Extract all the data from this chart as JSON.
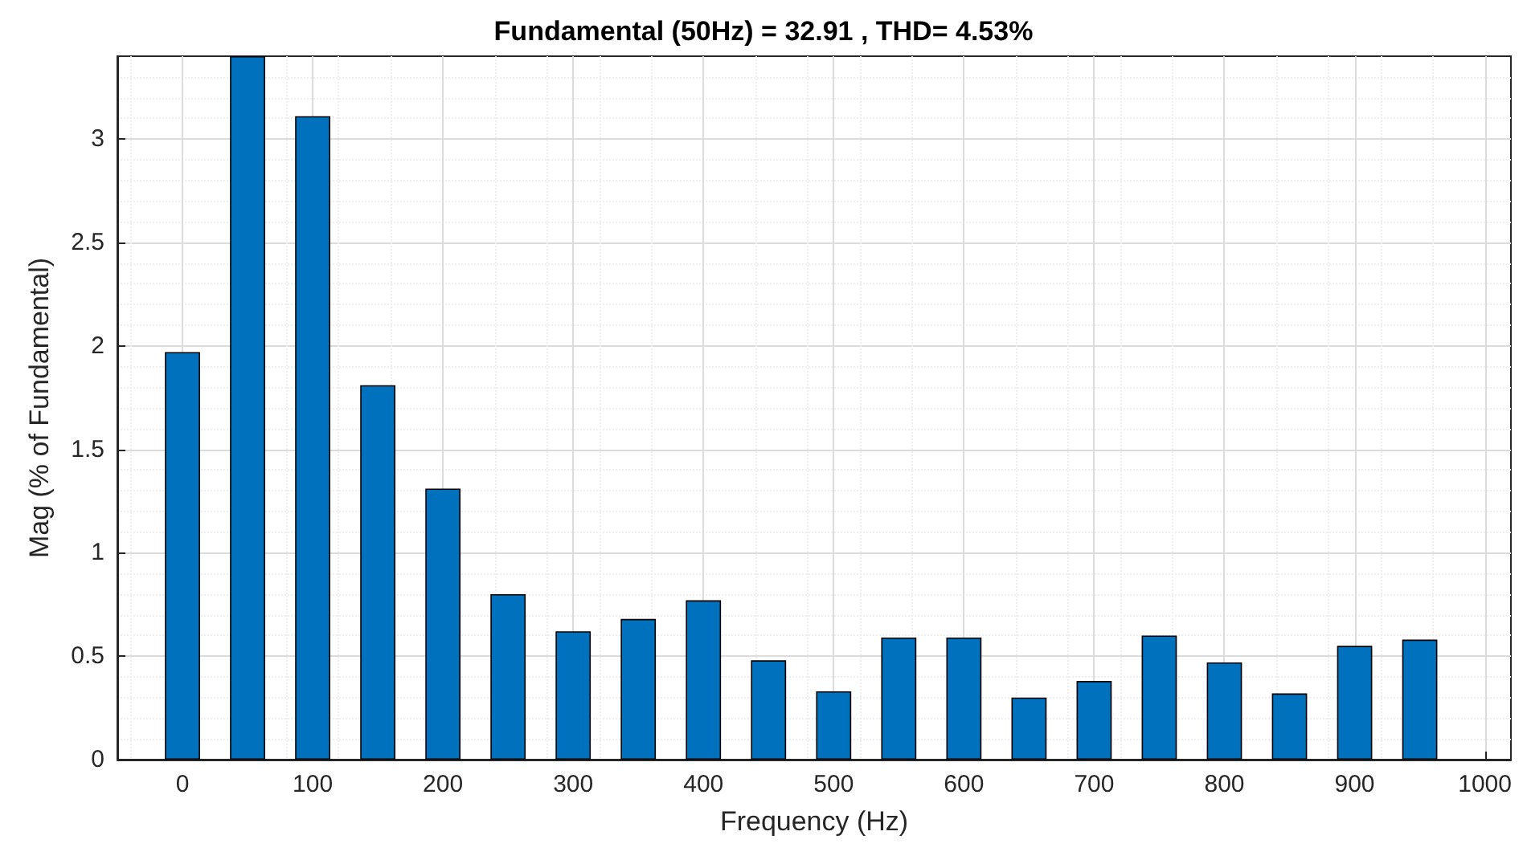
{
  "chart_data": {
    "type": "bar",
    "title": "Fundamental (50Hz) = 32.91 , THD= 4.53%",
    "xlabel": "Frequency (Hz)",
    "ylabel": "Mag (% of Fundamental)",
    "x": [
      0,
      50,
      100,
      150,
      200,
      250,
      300,
      350,
      400,
      450,
      500,
      550,
      600,
      650,
      700,
      750,
      800,
      850,
      900,
      950
    ],
    "values": [
      1.97,
      3.4,
      3.11,
      1.81,
      1.31,
      0.8,
      0.62,
      0.68,
      0.77,
      0.48,
      0.33,
      0.59,
      0.59,
      0.3,
      0.38,
      0.6,
      0.47,
      0.32,
      0.55,
      0.58
    ],
    "color": "#0072bd",
    "xlim": [
      -50,
      1020
    ],
    "xticks": [
      0,
      100,
      200,
      300,
      400,
      500,
      600,
      700,
      800,
      900,
      1000
    ],
    "ylim": [
      0,
      3.4
    ],
    "yticks": [
      0,
      0.5,
      1,
      1.5,
      2,
      2.5,
      3
    ],
    "grid": true
  }
}
